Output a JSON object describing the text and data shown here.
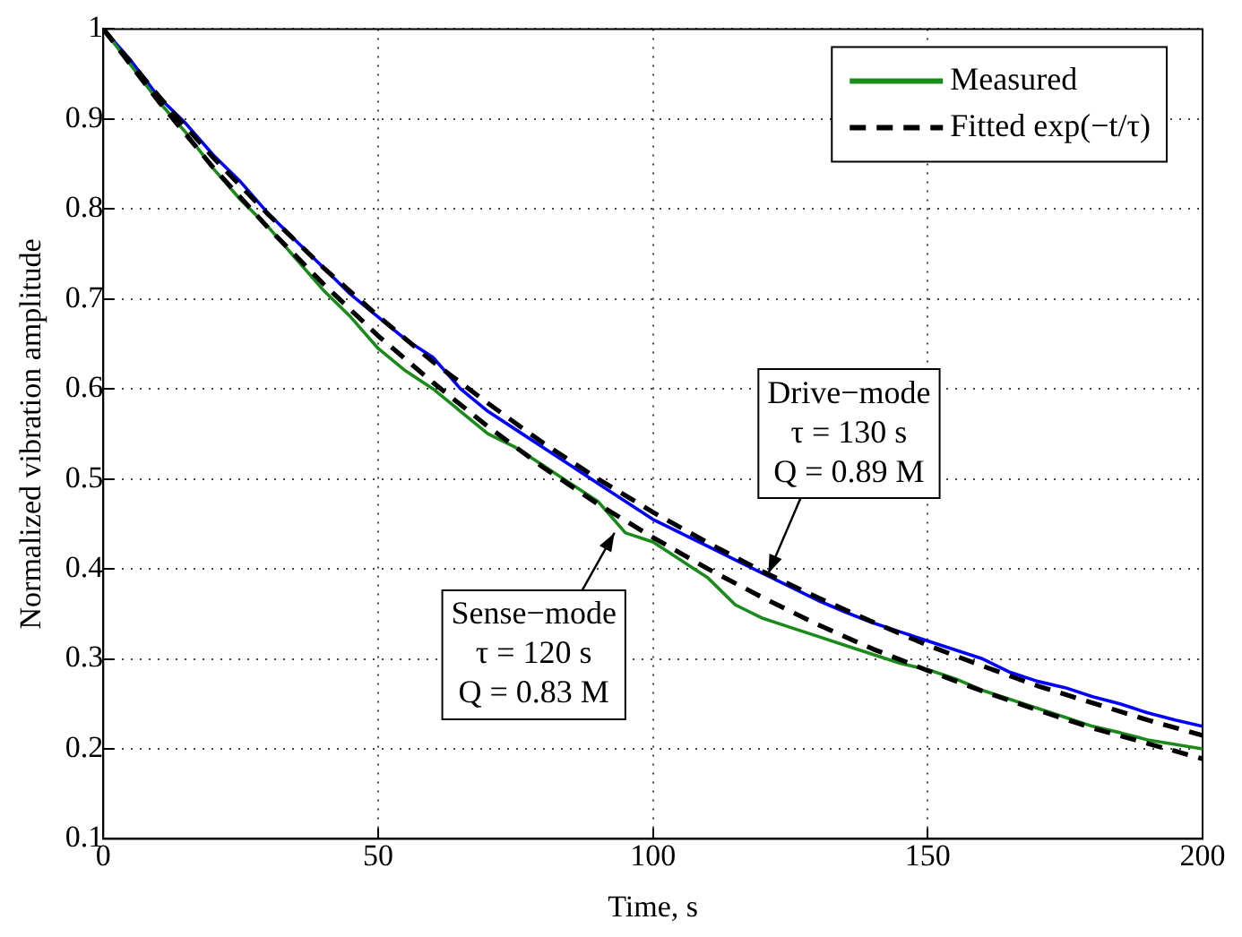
{
  "chart_data": {
    "type": "line",
    "xlabel": "Time, s",
    "ylabel": "Normalized vibration amplitude",
    "xlim": [
      0,
      200
    ],
    "xticks": [
      0,
      50,
      100,
      150,
      200
    ],
    "ylim": [
      0.1,
      1
    ],
    "yticks": [
      0.1,
      0.2,
      0.3,
      0.4,
      0.5,
      0.6,
      0.7,
      0.8,
      0.9,
      1
    ],
    "grid": true,
    "legend": "top right",
    "marker": "none",
    "x": [
      0,
      5,
      10,
      15,
      20,
      25,
      30,
      35,
      40,
      45,
      50,
      55,
      60,
      65,
      70,
      75,
      80,
      85,
      90,
      95,
      100,
      105,
      110,
      115,
      120,
      125,
      130,
      135,
      140,
      145,
      150,
      155,
      160,
      165,
      170,
      175,
      180,
      185,
      190,
      195,
      200
    ],
    "series": [
      {
        "color": "#0000ff",
        "line_style": "solid",
        "values": [
          1,
          0.965,
          0.925,
          0.895,
          0.86,
          0.83,
          0.795,
          0.765,
          0.735,
          0.705,
          0.68,
          0.655,
          0.635,
          0.6,
          0.575,
          0.555,
          0.535,
          0.515,
          0.495,
          0.475,
          0.455,
          0.44,
          0.425,
          0.41,
          0.395,
          0.38,
          0.365,
          0.352,
          0.34,
          0.33,
          0.32,
          0.31,
          0.3,
          0.285,
          0.275,
          0.268,
          0.258,
          0.25,
          0.24,
          0.232,
          0.225
        ]
      },
      {
        "name": "Measured",
        "color": "#1a8a1a",
        "line_style": "solid",
        "values": [
          1,
          0.96,
          0.92,
          0.885,
          0.845,
          0.81,
          0.78,
          0.745,
          0.71,
          0.68,
          0.645,
          0.62,
          0.6,
          0.575,
          0.55,
          0.535,
          0.515,
          0.495,
          0.475,
          0.44,
          0.43,
          0.41,
          0.39,
          0.36,
          0.345,
          0.335,
          0.325,
          0.315,
          0.305,
          0.295,
          0.288,
          0.278,
          0.265,
          0.255,
          0.245,
          0.235,
          0.225,
          0.218,
          0.21,
          0.205,
          0.2
        ]
      },
      {
        "name": "Fitted exp(−t/τ)",
        "color": "#000000",
        "line_style": "dashed",
        "x": [
          0,
          10,
          20,
          30,
          40,
          50,
          60,
          70,
          80,
          90,
          100,
          110,
          120,
          130,
          140,
          150,
          160,
          170,
          180,
          190,
          200
        ],
        "values": [
          1,
          0.926,
          0.857,
          0.794,
          0.735,
          0.681,
          0.63,
          0.584,
          0.54,
          0.5,
          0.463,
          0.429,
          0.397,
          0.368,
          0.341,
          0.315,
          0.292,
          0.27,
          0.251,
          0.232,
          0.215
        ]
      },
      {
        "color": "#000000",
        "line_style": "dashed",
        "x": [
          0,
          10,
          20,
          30,
          40,
          50,
          60,
          70,
          80,
          90,
          100,
          110,
          120,
          130,
          140,
          150,
          160,
          170,
          180,
          190,
          200
        ],
        "values": [
          1,
          0.92,
          0.846,
          0.779,
          0.717,
          0.659,
          0.607,
          0.558,
          0.513,
          0.472,
          0.435,
          0.4,
          0.368,
          0.338,
          0.311,
          0.287,
          0.264,
          0.243,
          0.223,
          0.206,
          0.189
        ]
      }
    ],
    "annotations": [
      {
        "text": "Drive−mode\nτ = 130 s\nQ = 0.89 M",
        "x": 121,
        "y": 0.395
      },
      {
        "text": "Sense−mode\nτ = 120 s\nQ = 0.83 M",
        "x": 93,
        "y": 0.44
      }
    ]
  }
}
